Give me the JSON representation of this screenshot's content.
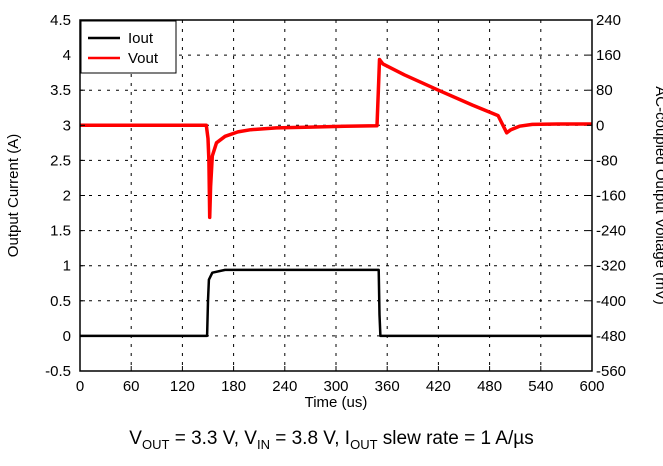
{
  "chart_data": {
    "type": "line",
    "xlabel": "Time (us)",
    "ylabel": "Output Current (A)",
    "y2label": "AC-coupled Output Voltage (mV)",
    "xlim": [
      0,
      600
    ],
    "ylim": [
      -0.5,
      4.5
    ],
    "y2lim": [
      -560,
      240
    ],
    "x_ticks": [
      "0",
      "60",
      "120",
      "180",
      "240",
      "300",
      "360",
      "420",
      "480",
      "540",
      "600"
    ],
    "y_ticks": [
      "-0.5",
      "0",
      "0.5",
      "1",
      "1.5",
      "2",
      "2.5",
      "3",
      "3.5",
      "4",
      "4.5"
    ],
    "y2_ticks": [
      "-560",
      "-480",
      "-400",
      "-320",
      "-240",
      "-160",
      "-80",
      "0",
      "80",
      "160",
      "240"
    ],
    "grid": true,
    "legend_position": "top-left",
    "series": [
      {
        "name": "Iout",
        "color": "#000000",
        "axis": "left",
        "x": [
          0,
          149,
          150,
          151,
          155,
          170,
          350,
          351,
          352,
          600
        ],
        "y": [
          0,
          0,
          0.5,
          0.8,
          0.9,
          0.94,
          0.94,
          0.3,
          0,
          0
        ]
      },
      {
        "name": "Vout",
        "color": "#ff0000",
        "axis": "right",
        "x": [
          0,
          148,
          150,
          151,
          152,
          153,
          155,
          160,
          170,
          185,
          200,
          230,
          270,
          310,
          348,
          350,
          351,
          355,
          380,
          420,
          460,
          490,
          500,
          505,
          515,
          530,
          560,
          600
        ],
        "y": [
          0,
          0,
          -30,
          -80,
          -210,
          -140,
          -70,
          -40,
          -25,
          -15,
          -10,
          -6,
          -4,
          -2,
          -1,
          100,
          150,
          140,
          115,
          80,
          46,
          22,
          -17,
          -10,
          -2,
          2,
          3,
          3
        ]
      }
    ]
  },
  "caption": {
    "vout_label": "V",
    "vout_sub": "OUT",
    "vout_value": " = 3.3 V, V",
    "vin_sub": "IN",
    "vin_value": " = 3.8 V, I",
    "iout_sub": "OUT",
    "rest": " slew rate = 1 A/µs"
  }
}
